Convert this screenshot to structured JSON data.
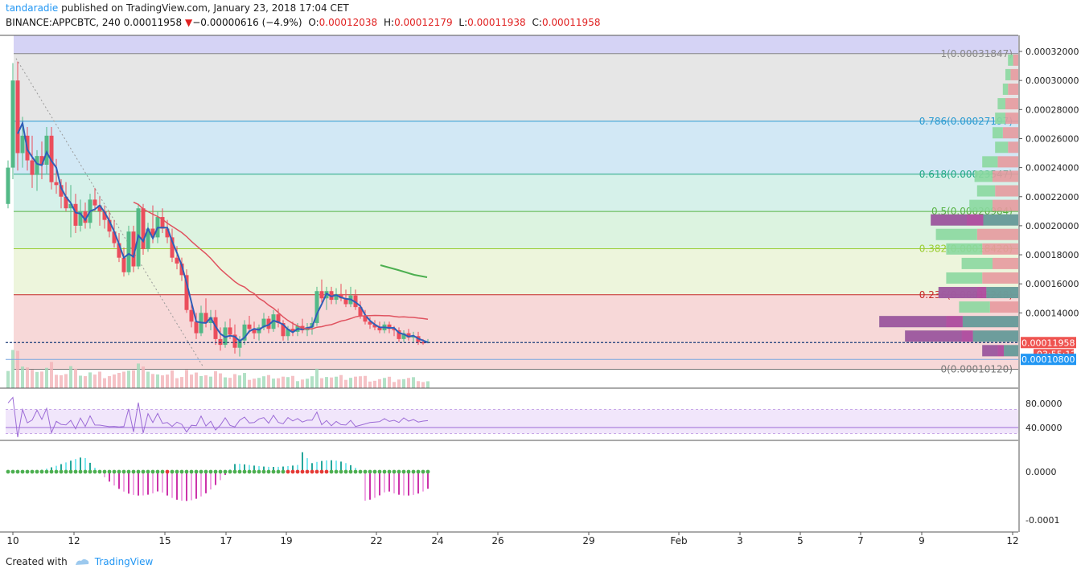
{
  "header": {
    "author": "tandaradie",
    "published_text": "published on TradingView.com, January 23, 2018 17:04 CET",
    "symbol": "BINANCE:APPCBTC, 240",
    "last": "0.00011958",
    "change_arrow": "▼",
    "change": "−0.00000616 (−4.9%)",
    "o_label": "O:",
    "o_value": "0.00012038",
    "h_label": "H:",
    "h_value": "0.00012179",
    "l_label": "L:",
    "l_value": "0.00011938",
    "c_label": "C:",
    "c_value": "0.00011958"
  },
  "footer": {
    "created_with": "Created with",
    "brand": "TradingView"
  },
  "price_badges": {
    "last_price": "0.00011958",
    "countdown": "03:55:12",
    "low_marker": "0.00010800"
  },
  "colors": {
    "bull": "#53b987",
    "bear": "#eb4d5c",
    "ma_blue": "#2f5fb8",
    "ma_red": "#e0525f",
    "ma_green": "#4caf50",
    "rsi": "#9c6bd6",
    "badge_red": "#ef5350",
    "badge_blue": "#2196f3"
  },
  "chart_data": {
    "type": "candlestick",
    "main_price_axis": {
      "ticks": [
        "0.00032000",
        "0.00030000",
        "0.00028000",
        "0.00026000",
        "0.00024000",
        "0.00022000",
        "0.00020000",
        "0.00018000",
        "0.00016000",
        "0.00014000"
      ],
      "tick_values": [
        0.00032,
        0.0003,
        0.00028,
        0.00026,
        0.00024,
        0.00022,
        0.0002,
        0.00018,
        0.00016,
        0.00014
      ],
      "range": [
        0.0001,
        0.000327
      ]
    },
    "fibonacci": [
      {
        "label": "1(0.00031847)",
        "value": 0.00031847,
        "color": "#888888",
        "fill": "#e6e6e6"
      },
      {
        "label": "0.786(0.00027197)",
        "value": 0.00027197,
        "color": "#2a9bd1",
        "fill": "#d2e8f5"
      },
      {
        "label": "0.618(0.00023547)",
        "value": 0.00023547,
        "color": "#22a884",
        "fill": "#d6f1ea"
      },
      {
        "label": "0.5(0.00020984)",
        "value": 0.00020984,
        "color": "#57b345",
        "fill": "#dcf3e0"
      },
      {
        "label": "0.382(0.00018420)",
        "value": 0.0001842,
        "color": "#9acd32",
        "fill": "#edf5dc"
      },
      {
        "label": "0.236(0.00015248)",
        "value": 0.00015248,
        "color": "#c62828",
        "fill": "#f7d8d8"
      },
      {
        "label": "0(0.00010120)",
        "value": 0.0001012,
        "color": "#777777",
        "fill": ""
      }
    ],
    "x_axis": {
      "labels": [
        "10",
        "12",
        "15",
        "17",
        "19",
        "22",
        "24",
        "26",
        "29",
        "Feb",
        "3",
        "5",
        "7",
        "9",
        "12"
      ],
      "units": "January 2018 dates (4h bars)"
    },
    "candles": [
      [
        0.000215,
        0.000245,
        0.000212,
        0.00024
      ],
      [
        0.00024,
        0.000312,
        0.000232,
        0.0003
      ],
      [
        0.0003,
        0.000313,
        0.000238,
        0.00025
      ],
      [
        0.00025,
        0.000275,
        0.00024,
        0.000262
      ],
      [
        0.000262,
        0.000268,
        0.000238,
        0.000245
      ],
      [
        0.000245,
        0.000262,
        0.000226,
        0.000235
      ],
      [
        0.000235,
        0.000252,
        0.000224,
        0.000248
      ],
      [
        0.000248,
        0.000258,
        0.000232,
        0.000242
      ],
      [
        0.000242,
        0.000268,
        0.000236,
        0.000262
      ],
      [
        0.000262,
        0.000268,
        0.000225,
        0.00023
      ],
      [
        0.00023,
        0.000246,
        0.000222,
        0.000228
      ],
      [
        0.000228,
        0.000232,
        0.000212,
        0.00022
      ],
      [
        0.00022,
        0.00023,
        0.00021,
        0.000212
      ],
      [
        0.000212,
        0.000228,
        0.000192,
        0.000215
      ],
      [
        0.000215,
        0.000222,
        0.000195,
        0.0002
      ],
      [
        0.0002,
        0.000218,
        0.000196,
        0.00021
      ],
      [
        0.00021,
        0.000216,
        0.000198,
        0.000202
      ],
      [
        0.000202,
        0.000222,
        0.000198,
        0.000218
      ],
      [
        0.000218,
        0.000226,
        0.00021,
        0.000214
      ],
      [
        0.000214,
        0.00022,
        0.0002,
        0.00021
      ],
      [
        0.00021,
        0.000214,
        0.000198,
        0.000204
      ],
      [
        0.000204,
        0.00021,
        0.000192,
        0.000196
      ],
      [
        0.000196,
        0.000204,
        0.000185,
        0.000188
      ],
      [
        0.000188,
        0.000195,
        0.000175,
        0.000178
      ],
      [
        0.000178,
        0.000185,
        0.000165,
        0.000168
      ],
      [
        0.000168,
        0.0002,
        0.000166,
        0.000196
      ],
      [
        0.000196,
        0.0002,
        0.000168,
        0.000172
      ],
      [
        0.000172,
        0.000215,
        0.00017,
        0.000212
      ],
      [
        0.000212,
        0.000215,
        0.00018,
        0.000184
      ],
      [
        0.000184,
        0.000202,
        0.000182,
        0.000198
      ],
      [
        0.000198,
        0.000214,
        0.000188,
        0.000192
      ],
      [
        0.000192,
        0.00021,
        0.000188,
        0.000206
      ],
      [
        0.000206,
        0.000212,
        0.000195,
        0.000198
      ],
      [
        0.000198,
        0.000204,
        0.000188,
        0.000192
      ],
      [
        0.000192,
        0.000198,
        0.000175,
        0.000178
      ],
      [
        0.000178,
        0.000186,
        0.00017,
        0.000174
      ],
      [
        0.000174,
        0.000178,
        0.000162,
        0.000166
      ],
      [
        0.000166,
        0.00017,
        0.00014,
        0.000142
      ],
      [
        0.000142,
        0.000146,
        0.00013,
        0.000134
      ],
      [
        0.000134,
        0.00014,
        0.000122,
        0.000126
      ],
      [
        0.000126,
        0.000145,
        0.000124,
        0.00014
      ],
      [
        0.00014,
        0.00015,
        0.00013,
        0.000133
      ],
      [
        0.000133,
        0.000142,
        0.000128,
        0.000137
      ],
      [
        0.000137,
        0.000142,
        0.000118,
        0.000122
      ],
      [
        0.000122,
        0.00013,
        0.000114,
        0.000118
      ],
      [
        0.000118,
        0.000134,
        0.000116,
        0.00013
      ],
      [
        0.00013,
        0.000136,
        0.000122,
        0.000125
      ],
      [
        0.000125,
        0.000132,
        0.000112,
        0.000116
      ],
      [
        0.000116,
        0.000124,
        0.00011,
        0.000121
      ],
      [
        0.000121,
        0.000135,
        0.000118,
        0.000132
      ],
      [
        0.000132,
        0.000138,
        0.000126,
        0.000129
      ],
      [
        0.000129,
        0.000134,
        0.000122,
        0.000126
      ],
      [
        0.000126,
        0.000132,
        0.000121,
        0.00013
      ],
      [
        0.00013,
        0.00014,
        0.000128,
        0.000136
      ],
      [
        0.000136,
        0.000138,
        0.000126,
        0.000129
      ],
      [
        0.000129,
        0.000142,
        0.000127,
        0.000139
      ],
      [
        0.000139,
        0.000143,
        0.00013,
        0.000133
      ],
      [
        0.000133,
        0.000135,
        0.000121,
        0.000124
      ],
      [
        0.000124,
        0.000131,
        0.000121,
        0.000129
      ],
      [
        0.000129,
        0.000134,
        0.000124,
        0.000127
      ],
      [
        0.000127,
        0.000133,
        0.000124,
        0.000131
      ],
      [
        0.000131,
        0.000136,
        0.000126,
        0.000128
      ],
      [
        0.000128,
        0.000133,
        0.000124,
        0.00013
      ],
      [
        0.00013,
        0.000137,
        0.000125,
        0.000133
      ],
      [
        0.000133,
        0.000158,
        0.000131,
        0.000155
      ],
      [
        0.000155,
        0.000163,
        0.000147,
        0.00015
      ],
      [
        0.00015,
        0.000158,
        0.000142,
        0.000155
      ],
      [
        0.000155,
        0.000158,
        0.000146,
        0.000149
      ],
      [
        0.000149,
        0.000157,
        0.000146,
        0.000153
      ],
      [
        0.000153,
        0.00016,
        0.000148,
        0.00015
      ],
      [
        0.00015,
        0.000156,
        0.000144,
        0.000146
      ],
      [
        0.000146,
        0.000158,
        0.000144,
        0.000152
      ],
      [
        0.000152,
        0.000156,
        0.000142,
        0.000144
      ],
      [
        0.000144,
        0.000148,
        0.000136,
        0.000138
      ],
      [
        0.000138,
        0.000142,
        0.000132,
        0.000134
      ],
      [
        0.000134,
        0.000137,
        0.000129,
        0.000132
      ],
      [
        0.000132,
        0.000135,
        0.000128,
        0.00013
      ],
      [
        0.00013,
        0.000134,
        0.000126,
        0.000128
      ],
      [
        0.000128,
        0.000134,
        0.000126,
        0.000132
      ],
      [
        0.000132,
        0.000134,
        0.000126,
        0.000129
      ],
      [
        0.000129,
        0.000131,
        0.000124,
        0.000128
      ],
      [
        0.000128,
        0.00013,
        0.00012,
        0.000122
      ],
      [
        0.000122,
        0.000128,
        0.00012,
        0.000126
      ],
      [
        0.000126,
        0.000129,
        0.000121,
        0.000123
      ],
      [
        0.000123,
        0.000127,
        0.00012,
        0.000124
      ],
      [
        0.000124,
        0.000127,
        0.000118,
        0.00012
      ],
      [
        0.00012,
        0.000122,
        0.000118,
        0.000119
      ],
      [
        0.00012,
        0.000122,
        0.000119,
        0.00012
      ]
    ],
    "volume_profile": [
      {
        "price": 0.000314,
        "buy": 2,
        "sell": 2
      },
      {
        "price": 0.000304,
        "buy": 2,
        "sell": 3
      },
      {
        "price": 0.000294,
        "buy": 2,
        "sell": 4
      },
      {
        "price": 0.000284,
        "buy": 3,
        "sell": 5
      },
      {
        "price": 0.000274,
        "buy": 4,
        "sell": 5
      },
      {
        "price": 0.000264,
        "buy": 4,
        "sell": 6
      },
      {
        "price": 0.000254,
        "buy": 5,
        "sell": 4
      },
      {
        "price": 0.000244,
        "buy": 6,
        "sell": 8
      },
      {
        "price": 0.000234,
        "buy": 7,
        "sell": 10
      },
      {
        "price": 0.000224,
        "buy": 7,
        "sell": 9
      },
      {
        "price": 0.000214,
        "buy": 9,
        "sell": 10
      },
      {
        "price": 0.000204,
        "buy": 14,
        "sell": 20
      },
      {
        "price": 0.000194,
        "buy": 16,
        "sell": 16
      },
      {
        "price": 0.000184,
        "buy": 14,
        "sell": 14
      },
      {
        "price": 0.000174,
        "buy": 12,
        "sell": 10
      },
      {
        "price": 0.000164,
        "buy": 14,
        "sell": 14
      },
      {
        "price": 0.000154,
        "buy": 15,
        "sell": 16
      },
      {
        "price": 0.000144,
        "buy": 12,
        "sell": 11
      },
      {
        "price": 0.000134,
        "buy": 26,
        "sell": 28
      },
      {
        "price": 0.000124,
        "buy": 22,
        "sell": 22
      },
      {
        "price": 0.000114,
        "buy": 6,
        "sell": 8
      }
    ],
    "rsi": {
      "ticks": [
        "80.0000",
        "40.0000"
      ],
      "tick_values": [
        80,
        40
      ],
      "band": [
        70,
        30
      ],
      "range": [
        20,
        95
      ]
    },
    "macd_hist": {
      "ticks": [
        "0.0000",
        "-0.0001"
      ],
      "tick_values": [
        0,
        -0.0001
      ],
      "range": [
        -0.000112,
        5e-05
      ]
    },
    "grid": false,
    "legend": "none"
  }
}
